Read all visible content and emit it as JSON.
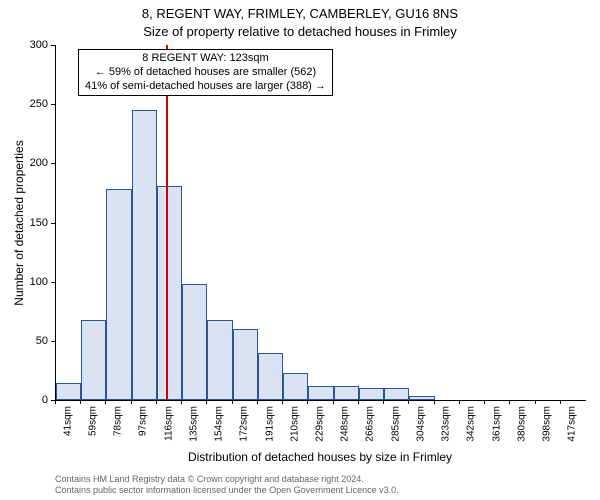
{
  "title": "8, REGENT WAY, FRIMLEY, CAMBERLEY, GU16 8NS",
  "subtitle": "Size of property relative to detached houses in Frimley",
  "y_axis_label": "Number of detached properties",
  "x_axis_label": "Distribution of detached houses by size in Frimley",
  "attribution_line1": "Contains HM Land Registry data © Crown copyright and database right 2024.",
  "attribution_line2": "Contains public sector information licensed under the Open Government Licence v3.0.",
  "info_box": {
    "line1": "8 REGENT WAY: 123sqm",
    "line2": "← 59% of detached houses are smaller (562)",
    "line3": "41% of semi-detached houses are larger (388) →"
  },
  "chart": {
    "type": "histogram",
    "bar_fill": "#d9e3f4",
    "bar_stroke": "#2b5797",
    "background_color": "#ffffff",
    "axis_color": "#000000",
    "ref_line_color": "#d00000",
    "ref_line_x": 123,
    "ylim": [
      0,
      300
    ],
    "ytick_step": 50,
    "x_start": 41,
    "x_step": 18.8,
    "x_bins": 21,
    "x_tick_labels": [
      "41sqm",
      "59sqm",
      "78sqm",
      "97sqm",
      "116sqm",
      "135sqm",
      "154sqm",
      "172sqm",
      "191sqm",
      "210sqm",
      "229sqm",
      "248sqm",
      "266sqm",
      "285sqm",
      "304sqm",
      "323sqm",
      "342sqm",
      "361sqm",
      "380sqm",
      "398sqm",
      "417sqm"
    ],
    "values": [
      14,
      68,
      178,
      245,
      181,
      98,
      68,
      60,
      40,
      23,
      12,
      12,
      10,
      10,
      3,
      0,
      0,
      0,
      0,
      0,
      0
    ],
    "title_fontsize": 13,
    "label_fontsize": 12,
    "tick_fontsize": 11,
    "xtick_fontsize": 10,
    "info_fontsize": 11,
    "attribution_fontsize": 9,
    "attribution_color": "#666666"
  }
}
